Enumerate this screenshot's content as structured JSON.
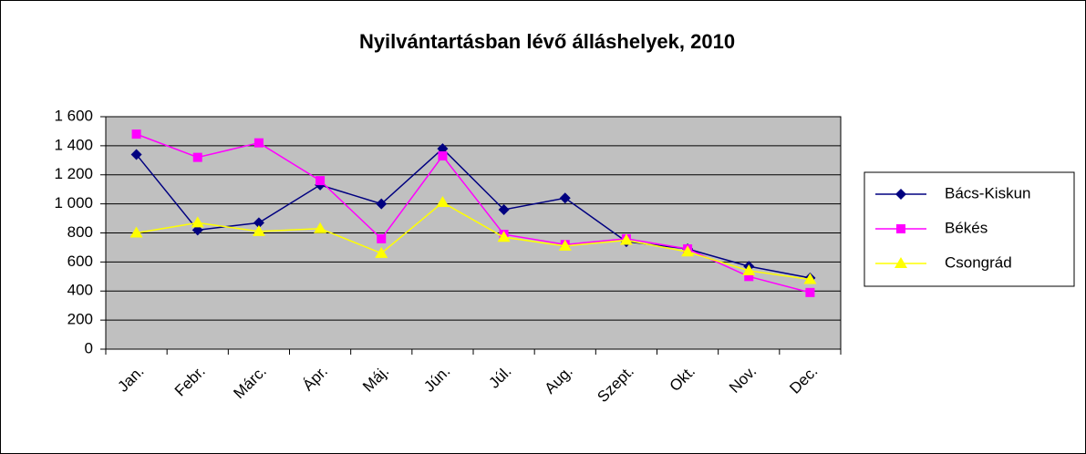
{
  "chart_data": {
    "type": "line",
    "title": "Nyilvántartásban lévő álláshelyek, 2010",
    "categories": [
      "Jan.",
      "Febr.",
      "Márc.",
      "Ápr.",
      "Máj.",
      "Jún.",
      "Júl.",
      "Aug.",
      "Szept.",
      "Okt.",
      "Nov.",
      "Dec."
    ],
    "series": [
      {
        "name": "Bács-Kiskun",
        "color": "#000080",
        "marker": "diamond",
        "values": [
          1340,
          820,
          870,
          1130,
          1000,
          1380,
          960,
          1040,
          740,
          690,
          570,
          490
        ]
      },
      {
        "name": "Békés",
        "color": "#ff00ff",
        "marker": "square",
        "values": [
          1480,
          1320,
          1420,
          1160,
          760,
          1330,
          790,
          720,
          760,
          690,
          500,
          390
        ]
      },
      {
        "name": "Csongrád",
        "color": "#ffff00",
        "marker": "triangle",
        "values": [
          800,
          870,
          810,
          830,
          660,
          1010,
          770,
          710,
          750,
          670,
          540,
          480
        ]
      }
    ],
    "ylim": [
      0,
      1600
    ],
    "yticks": [
      0,
      200,
      400,
      600,
      800,
      {
        "value": 1000,
        "label": "1 000"
      },
      {
        "value": 1200,
        "label": "1 200"
      },
      {
        "value": 1400,
        "label": "1 400"
      },
      {
        "value": 1600,
        "label": "1 600"
      }
    ],
    "grid": true,
    "legend": "right",
    "plot_background": "#c0c0c0"
  }
}
